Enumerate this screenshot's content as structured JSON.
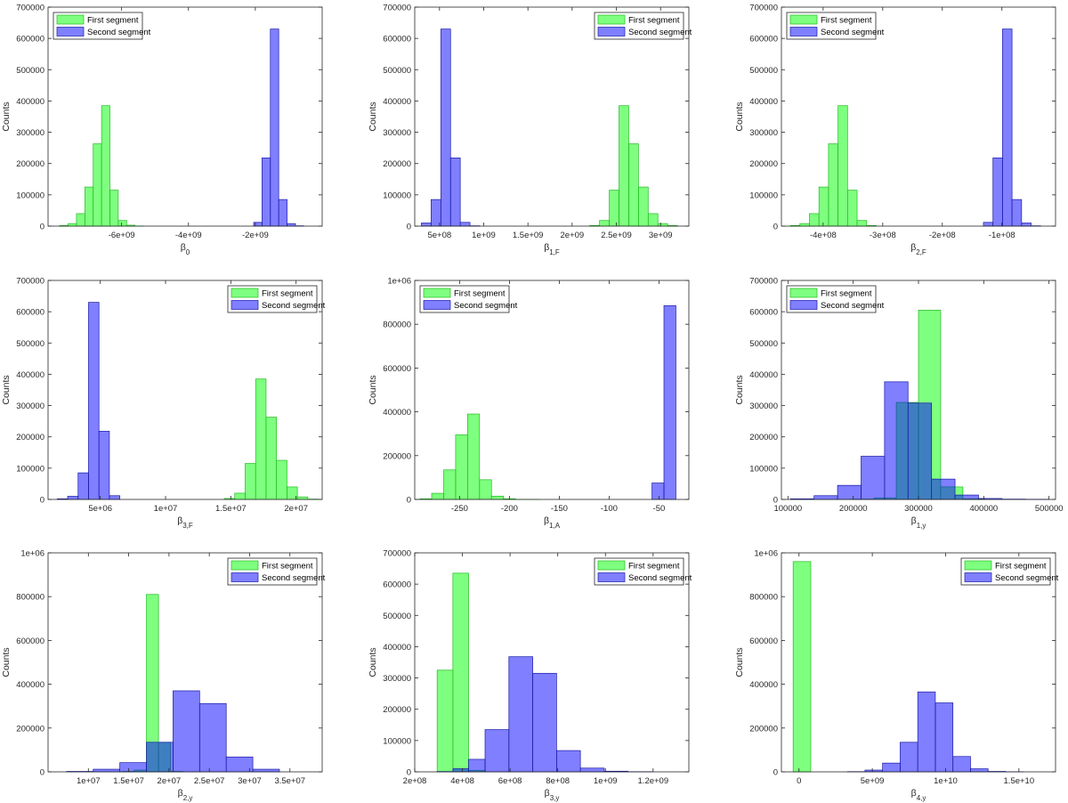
{
  "colors": {
    "first_fill": "#00ff00",
    "first_stroke": "#22bb22",
    "second_fill": "#0000ff",
    "second_stroke": "#1a1aa8",
    "bar_alpha": 0.5
  },
  "legend": {
    "first": "First segment",
    "second": "Second segment"
  },
  "chart_data": [
    {
      "type": "bar",
      "title": "",
      "xlabel": {
        "base": "β",
        "sub": "0"
      },
      "ylabel": "Counts",
      "xlim": [
        -8200000000.0,
        -0.0
      ],
      "ylim": [
        0,
        700000
      ],
      "xticks": [
        -6000000000.0,
        -4000000000.0,
        -2000000000.0
      ],
      "xtick_labels": [
        "-6e+09",
        "-4e+09",
        "-2e+09"
      ],
      "yticks": [
        0,
        100000,
        200000,
        300000,
        400000,
        500000,
        600000,
        700000
      ],
      "ytick_labels": [
        "0",
        "100000",
        "200000",
        "300000",
        "400000",
        "500000",
        "600000",
        "700000"
      ],
      "legend_position": "top-left",
      "series": [
        {
          "name": "First segment",
          "bin_edges": [
            -7850000000.0,
            -7600000000.0,
            -7350000000.0,
            -7100000000.0,
            -6850000000.0,
            -6600000000.0,
            -6350000000.0,
            -6100000000.0,
            -5850000000.0,
            -5600000000.0,
            -5350000000.0
          ],
          "values": [
            2000,
            8000,
            40000,
            125000,
            263000,
            385000,
            115000,
            18000,
            3000,
            500
          ]
        },
        {
          "name": "Second segment",
          "bin_edges": [
            -2050000000.0,
            -1800000000.0,
            -1550000000.0,
            -1300000000.0,
            -1050000000.0,
            -800000000.0,
            -550000000.0
          ],
          "values": [
            12000,
            218000,
            630000,
            85000,
            8000,
            1000
          ]
        }
      ]
    },
    {
      "type": "bar",
      "title": "",
      "xlabel": {
        "base": "β",
        "sub": "1,F"
      },
      "ylabel": "Counts",
      "xlim": [
        220000000.0,
        3320000000.0
      ],
      "ylim": [
        0,
        700000
      ],
      "xticks": [
        500000000.0,
        1000000000.0,
        1500000000.0,
        2000000000.0,
        2500000000.0,
        3000000000.0
      ],
      "xtick_labels": [
        "5e+08",
        "1e+09",
        "1.5e+09",
        "2e+09",
        "2.5e+09",
        "3e+09"
      ],
      "yticks": [
        0,
        100000,
        200000,
        300000,
        400000,
        500000,
        600000,
        700000
      ],
      "ytick_labels": [
        "0",
        "100000",
        "200000",
        "300000",
        "400000",
        "500000",
        "600000",
        "700000"
      ],
      "legend_position": "top-right",
      "series": [
        {
          "name": "First segment",
          "bin_edges": [
            2200000000.0,
            2310000000.0,
            2420000000.0,
            2530000000.0,
            2640000000.0,
            2750000000.0,
            2860000000.0,
            2970000000.0,
            3080000000.0,
            3190000000.0
          ],
          "values": [
            2000,
            18000,
            115000,
            385000,
            263000,
            125000,
            40000,
            8000,
            2000
          ]
        },
        {
          "name": "Second segment",
          "bin_edges": [
            295000000.0,
            405000000.0,
            515000000.0,
            625000000.0,
            735000000.0,
            845000000.0,
            955000000.0
          ],
          "values": [
            10000,
            85000,
            630000,
            218000,
            12000,
            1000
          ]
        }
      ]
    },
    {
      "type": "bar",
      "title": "",
      "xlabel": {
        "base": "β",
        "sub": "2,F"
      },
      "ylabel": "Counts",
      "xlim": [
        -470000000.0,
        -10000000.0
      ],
      "ylim": [
        0,
        700000
      ],
      "xticks": [
        -400000000.0,
        -300000000.0,
        -200000000.0,
        -100000000.0
      ],
      "xtick_labels": [
        "-4e+08",
        "-3e+08",
        "-2e+08",
        "-1e+08"
      ],
      "yticks": [
        0,
        100000,
        200000,
        300000,
        400000,
        500000,
        600000,
        700000
      ],
      "ytick_labels": [
        "0",
        "100000",
        "200000",
        "300000",
        "400000",
        "500000",
        "600000",
        "700000"
      ],
      "legend_position": "top-left",
      "series": [
        {
          "name": "First segment",
          "bin_edges": [
            -455000000.0,
            -439000000.0,
            -423000000.0,
            -407000000.0,
            -391000000.0,
            -375000000.0,
            -359000000.0,
            -343000000.0,
            -327000000.0,
            -311000000.0
          ],
          "values": [
            2000,
            8000,
            40000,
            125000,
            263000,
            385000,
            115000,
            18000,
            2000
          ]
        },
        {
          "name": "Second segment",
          "bin_edges": [
            -131000000.0,
            -115000000.0,
            -99000000.0,
            -83000000.0,
            -67000000.0,
            -51000000.0,
            -35000000.0
          ],
          "values": [
            12000,
            218000,
            630000,
            85000,
            10000,
            1000
          ]
        }
      ]
    },
    {
      "type": "bar",
      "title": "",
      "xlabel": {
        "base": "β",
        "sub": "3,F"
      },
      "ylabel": "Counts",
      "xlim": [
        1000000.0,
        22000000.0
      ],
      "ylim": [
        0,
        700000
      ],
      "xticks": [
        5000000.0,
        10000000.0,
        15000000.0,
        20000000.0
      ],
      "xtick_labels": [
        "5e+06",
        "1e+07",
        "1.5e+07",
        "2e+07"
      ],
      "yticks": [
        0,
        100000,
        200000,
        300000,
        400000,
        500000,
        600000,
        700000
      ],
      "ytick_labels": [
        "0",
        "100000",
        "200000",
        "300000",
        "400000",
        "500000",
        "600000",
        "700000"
      ],
      "legend_position": "top-right",
      "series": [
        {
          "name": "First segment",
          "bin_edges": [
            14500000.0,
            15300000.0,
            16100000.0,
            16900000.0,
            17700000.0,
            18500000.0,
            19300000.0,
            20100000.0,
            20900000.0,
            21700000.0
          ],
          "values": [
            3000,
            20000,
            115000,
            385000,
            263000,
            125000,
            40000,
            8000,
            1000
          ]
        },
        {
          "name": "Second segment",
          "bin_edges": [
            1700000.0,
            2500000.0,
            3300000.0,
            4100000.0,
            4900000.0,
            5700000.0,
            6500000.0
          ],
          "values": [
            2000,
            10000,
            85000,
            630000,
            218000,
            12000
          ]
        }
      ]
    },
    {
      "type": "bar",
      "title": "",
      "xlabel": {
        "base": "β",
        "sub": "1,A"
      },
      "ylabel": "Counts",
      "xlim": [
        -295,
        -20
      ],
      "ylim": [
        0,
        1000000
      ],
      "xticks": [
        -250,
        -200,
        -150,
        -100,
        -50
      ],
      "xtick_labels": [
        "-250",
        "-200",
        "-150",
        "-100",
        "-50"
      ],
      "yticks": [
        0,
        200000,
        400000,
        600000,
        800000,
        1000000
      ],
      "ytick_labels": [
        "0",
        "200000",
        "400000",
        "600000",
        "800000",
        "1e+06"
      ],
      "legend_position": "top-left",
      "series": [
        {
          "name": "First segment",
          "bin_edges": [
            -290,
            -278,
            -266,
            -254,
            -242,
            -230,
            -218,
            -206,
            -194,
            -182,
            -170
          ],
          "values": [
            3000,
            28000,
            135000,
            295000,
            390000,
            90000,
            15000,
            3000,
            500,
            200
          ]
        },
        {
          "name": "Second segment",
          "bin_edges": [
            -57,
            -45,
            -33
          ],
          "values": [
            75000,
            885000
          ]
        }
      ]
    },
    {
      "type": "bar",
      "title": "",
      "xlabel": {
        "base": "β",
        "sub": "1,y"
      },
      "ylabel": "Counts",
      "xlim": [
        90000,
        510000
      ],
      "ylim": [
        0,
        700000
      ],
      "xticks": [
        100000,
        200000,
        300000,
        400000,
        500000
      ],
      "xtick_labels": [
        "100000",
        "200000",
        "300000",
        "400000",
        "500000"
      ],
      "yticks": [
        0,
        100000,
        200000,
        300000,
        400000,
        500000,
        600000,
        700000
      ],
      "ytick_labels": [
        "0",
        "100000",
        "200000",
        "300000",
        "400000",
        "500000",
        "600000",
        "700000"
      ],
      "legend_position": "top-left",
      "series": [
        {
          "name": "First segment",
          "bin_edges": [
            198000,
            232000,
            266000,
            300000,
            334000,
            368000,
            402000
          ],
          "values": [
            1000,
            5000,
            310000,
            605000,
            40000,
            2000
          ]
        },
        {
          "name": "Second segment",
          "bin_edges": [
            104000,
            140000,
            176000,
            212000,
            248000,
            284000,
            320000,
            356000,
            392000,
            428000,
            464000,
            500000
          ],
          "values": [
            2000,
            12000,
            45000,
            138000,
            376000,
            308000,
            65000,
            14000,
            3000,
            1000,
            500
          ]
        }
      ]
    },
    {
      "type": "bar",
      "title": "",
      "xlabel": {
        "base": "β",
        "sub": "2,y"
      },
      "ylabel": "Counts",
      "xlim": [
        5000000.0,
        39000000.0
      ],
      "ylim": [
        0,
        1000000
      ],
      "xticks": [
        10000000.0,
        15000000.0,
        20000000.0,
        25000000.0,
        30000000.0,
        35000000.0
      ],
      "xtick_labels": [
        "1e+07",
        "1.5e+07",
        "2e+07",
        "2.5e+07",
        "3e+07",
        "3.5e+07"
      ],
      "yticks": [
        0,
        200000,
        400000,
        600000,
        800000,
        1000000
      ],
      "ytick_labels": [
        "0",
        "200000",
        "400000",
        "600000",
        "800000",
        "1e+06"
      ],
      "legend_position": "top-right",
      "series": [
        {
          "name": "First segment",
          "bin_edges": [
            14200000.0,
            15700000.0,
            17200000.0,
            18700000.0,
            20200000.0,
            21700000.0
          ],
          "values": [
            2000,
            8000,
            810000,
            135000,
            2000
          ]
        },
        {
          "name": "Second segment",
          "bin_edges": [
            7300000.0,
            10600000.0,
            13900000.0,
            17200000.0,
            20500000.0,
            23800000.0,
            27100000.0,
            30400000.0,
            33700000.0
          ],
          "values": [
            2000,
            12000,
            42000,
            135000,
            370000,
            312000,
            68000,
            12000,
            3000
          ]
        }
      ]
    },
    {
      "type": "bar",
      "title": "",
      "xlabel": {
        "base": "β",
        "sub": "3,y"
      },
      "ylabel": "Counts",
      "xlim": [
        200000000.0,
        1350000000.0
      ],
      "ylim": [
        0,
        700000
      ],
      "xticks": [
        200000000.0,
        400000000.0,
        600000000.0,
        800000000.0,
        1000000000.0,
        1200000000.0
      ],
      "xtick_labels": [
        "2e+08",
        "4e+08",
        "6e+08",
        "8e+08",
        "1e+09",
        "1.2e+09"
      ],
      "yticks": [
        0,
        100000,
        200000,
        300000,
        400000,
        500000,
        600000,
        700000
      ],
      "ytick_labels": [
        "0",
        "100000",
        "200000",
        "300000",
        "400000",
        "500000",
        "600000",
        "700000"
      ],
      "legend_position": "top-right",
      "series": [
        {
          "name": "First segment",
          "bin_edges": [
            294000000.0,
            360000000.0,
            426000000.0,
            492000000.0
          ],
          "values": [
            325000,
            635000,
            5000
          ]
        },
        {
          "name": "Second segment",
          "bin_edges": [
            294000000.0,
            360000000.0,
            426000000.0,
            495000000.0,
            595000000.0,
            695000000.0,
            795000000.0,
            895000000.0,
            995000000.0,
            1095000000.0,
            1195000000.0
          ],
          "values": [
            1000,
            10000,
            40000,
            135000,
            368000,
            315000,
            68000,
            12000,
            2000,
            500
          ]
        }
      ]
    },
    {
      "type": "bar",
      "title": "",
      "xlabel": {
        "base": "β",
        "sub": "4,y"
      },
      "ylabel": "Counts",
      "xlim": [
        -1200000000.0,
        17500000000.0
      ],
      "ylim": [
        0,
        1000000
      ],
      "xticks": [
        0,
        5000000000.0,
        10000000000.0,
        15000000000.0
      ],
      "xtick_labels": [
        "0",
        "5e+09",
        "1e+10",
        "1.5e+10"
      ],
      "yticks": [
        0,
        200000,
        400000,
        600000,
        800000,
        1000000
      ],
      "ytick_labels": [
        "0",
        "200000",
        "400000",
        "600000",
        "800000",
        "1e+06"
      ],
      "legend_position": "top-right",
      "series": [
        {
          "name": "First segment",
          "bin_edges": [
            -400000000.0,
            800000000.0
          ],
          "values": [
            960000
          ]
        },
        {
          "name": "Second segment",
          "bin_edges": [
            3300000000.0,
            4500000000.0,
            5700000000.0,
            6900000000.0,
            8100000000.0,
            9300000000.0,
            10500000000.0,
            11700000000.0,
            12900000000.0,
            14100000000.0,
            15300000000.0
          ],
          "values": [
            1000,
            8000,
            40000,
            135000,
            365000,
            315000,
            70000,
            14000,
            2000,
            500
          ]
        }
      ]
    }
  ]
}
